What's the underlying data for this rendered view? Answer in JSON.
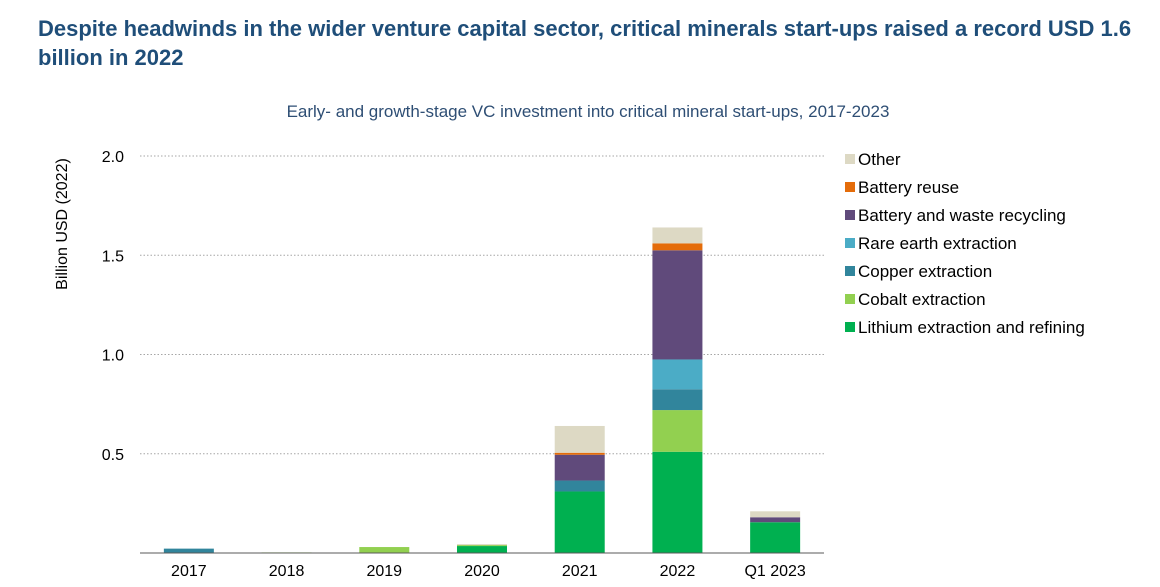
{
  "headline": "Despite headwinds in the wider venture capital sector, critical minerals start-ups raised a record USD 1.6 billion in 2022",
  "chart_data": {
    "type": "bar",
    "stacked": true,
    "title": "Early- and growth-stage VC investment into critical mineral start-ups, 2017-2023",
    "ylabel": "Billion USD (2022)",
    "xlabel": "",
    "ylim": [
      0,
      2.0
    ],
    "yticks": [
      {
        "value": 0.5,
        "label": "0.5"
      },
      {
        "value": 1.0,
        "label": "1.0"
      },
      {
        "value": 1.5,
        "label": "1.5"
      },
      {
        "value": 2.0,
        "label": "2.0"
      }
    ],
    "grid": "horizontal-dotted",
    "legend_position": "right",
    "categories": [
      "2017",
      "2018",
      "2019",
      "2020",
      "2021",
      "2022",
      "Q1 2023"
    ],
    "series": [
      {
        "name": "Lithium extraction and refining",
        "color": "#00b050",
        "values": [
          0.0,
          0.0,
          0.0,
          0.035,
          0.31,
          0.51,
          0.155
        ]
      },
      {
        "name": "Cobalt extraction",
        "color": "#92d050",
        "values": [
          0.0,
          0.003,
          0.03,
          0.005,
          0.0,
          0.21,
          0.0
        ]
      },
      {
        "name": "Copper extraction",
        "color": "#31859c",
        "values": [
          0.022,
          0.0,
          0.0,
          0.0,
          0.055,
          0.105,
          0.0
        ]
      },
      {
        "name": "Rare earth extraction",
        "color": "#4bacc6",
        "values": [
          0.0,
          0.0,
          0.0,
          0.0,
          0.0,
          0.15,
          0.0
        ]
      },
      {
        "name": "Battery and waste recycling",
        "color": "#604a7b",
        "values": [
          0.0,
          0.0,
          0.0,
          0.0,
          0.13,
          0.55,
          0.025
        ]
      },
      {
        "name": "Battery reuse",
        "color": "#e46c0a",
        "values": [
          0.0,
          0.0,
          0.0,
          0.0,
          0.01,
          0.035,
          0.0
        ]
      },
      {
        "name": "Other",
        "color": "#ddd9c4",
        "values": [
          0.0,
          0.0,
          0.0,
          0.005,
          0.135,
          0.08,
          0.03
        ]
      }
    ]
  }
}
